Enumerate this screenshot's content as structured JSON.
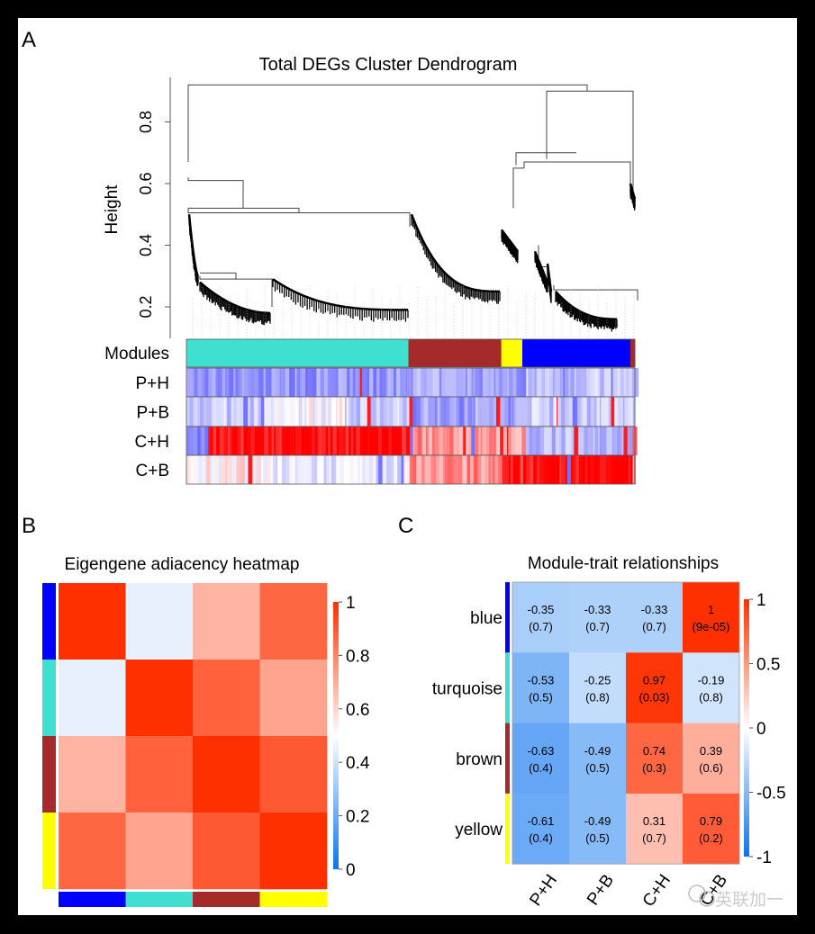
{
  "chart_data": [
    {
      "panel": "A",
      "type": "dendrogram",
      "title": "Total DEGs Cluster Dendrogram",
      "ylabel": "Height",
      "yticks": [
        0.2,
        0.4,
        0.6,
        0.8
      ],
      "ylim": [
        0.1,
        0.95
      ],
      "modules_row_label": "Modules",
      "trait_rows": [
        "P+H",
        "P+B",
        "C+H",
        "C+B"
      ],
      "module_segments": [
        {
          "module": "turquoise",
          "color": "#40E0D0",
          "fraction": 0.495
        },
        {
          "module": "brown",
          "color": "#A52A2A",
          "fraction": 0.207
        },
        {
          "module": "yellow",
          "color": "#FFFF00",
          "fraction": 0.047
        },
        {
          "module": "blue",
          "color": "#0000FF",
          "fraction": 0.241
        },
        {
          "module": "brown",
          "color": "#A52A2A",
          "fraction": 0.01
        }
      ],
      "trait_dominant_tone": {
        "P+H": [
          "blue",
          "blue",
          "blue",
          "light-blue"
        ],
        "P+B": [
          "light-blue/white",
          "blue",
          "blue",
          "light-blue"
        ],
        "C+H": [
          "red",
          "red/pink",
          "pink",
          "light-blue"
        ],
        "C+B": [
          "white/blue",
          "pink",
          "red",
          "red"
        ]
      },
      "merge_heights": {
        "root": 0.92,
        "right_cluster": 0.9,
        "yellow_blue": 0.7,
        "left_top": 0.6,
        "turquoise_brown": 0.52
      }
    },
    {
      "panel": "B",
      "type": "heatmap",
      "title": "Eigengene adiacency heatmap",
      "rows": [
        "blue",
        "turquoise",
        "brown",
        "yellow"
      ],
      "cols": [
        "blue",
        "turquoise",
        "brown",
        "yellow"
      ],
      "row_colors": [
        "#0000FF",
        "#40E0D0",
        "#A52A2A",
        "#FFFF00"
      ],
      "values": [
        [
          1.0,
          0.45,
          0.68,
          0.87
        ],
        [
          0.45,
          1.0,
          0.88,
          0.72
        ],
        [
          0.68,
          0.88,
          1.0,
          0.9
        ],
        [
          0.87,
          0.72,
          0.9,
          1.0
        ]
      ],
      "colorbar": {
        "ticks": [
          0,
          0.2,
          0.4,
          0.6,
          0.8,
          1
        ],
        "range": [
          0,
          1
        ]
      }
    },
    {
      "panel": "C",
      "type": "heatmap",
      "title": "Module-trait relationships",
      "rows": [
        "blue",
        "turquoise",
        "brown",
        "yellow"
      ],
      "row_colors": [
        "#0000FF",
        "#40E0D0",
        "#A52A2A",
        "#FFFF00"
      ],
      "cols": [
        "P+H",
        "P+B",
        "C+H",
        "C+B"
      ],
      "values": [
        [
          -0.35,
          -0.33,
          -0.33,
          1
        ],
        [
          -0.53,
          -0.25,
          0.97,
          -0.19
        ],
        [
          -0.63,
          -0.49,
          0.74,
          0.39
        ],
        [
          -0.61,
          -0.49,
          0.31,
          0.79
        ]
      ],
      "labels": [
        [
          "-0.35",
          "-0.33",
          "-0.33",
          "1"
        ],
        [
          "-0.53",
          "-0.25",
          "0.97",
          "-0.19"
        ],
        [
          "-0.63",
          "-0.49",
          "0.74",
          "0.39"
        ],
        [
          "-0.61",
          "-0.49",
          "0.31",
          "0.79"
        ]
      ],
      "pvalues": [
        [
          "(0.7)",
          "(0.7)",
          "(0.7)",
          "(9e-05)"
        ],
        [
          "(0.5)",
          "(0.8)",
          "(0.03)",
          "(0.8)"
        ],
        [
          "(0.4)",
          "(0.5)",
          "(0.3)",
          "(0.6)"
        ],
        [
          "(0.4)",
          "(0.5)",
          "(0.7)",
          "(0.2)"
        ]
      ],
      "colorbar": {
        "ticks": [
          -1,
          -0.5,
          0,
          0.5,
          1
        ],
        "range": [
          -1,
          1
        ]
      }
    }
  ],
  "panel_labels": [
    "A",
    "B",
    "C"
  ],
  "watermark": "英联加一"
}
